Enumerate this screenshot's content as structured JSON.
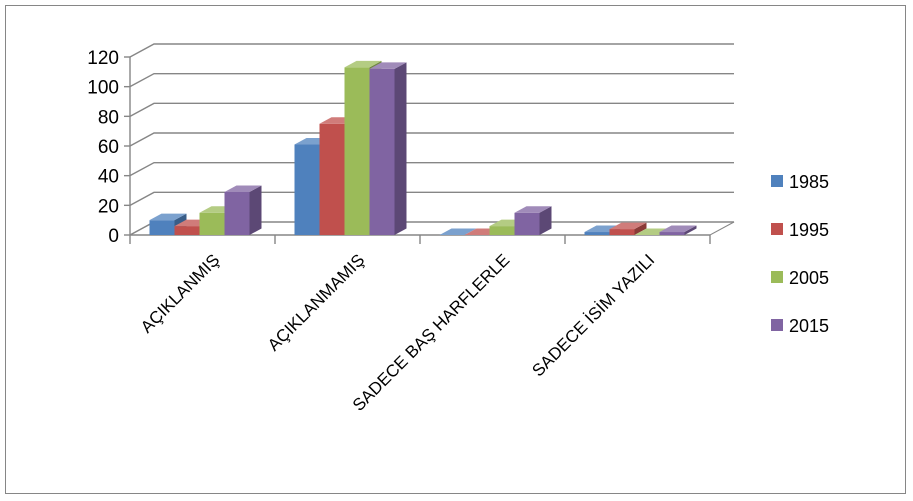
{
  "chart_data": {
    "type": "bar",
    "title": "",
    "xlabel": "",
    "ylabel": "",
    "categories": [
      "AÇIKLANMIŞ",
      "AÇIKLANMAMIŞ",
      "SADECE BAŞ HARFLERLE",
      "SADECE İSİM YAZILI"
    ],
    "series": [
      {
        "name": "1985",
        "color": "#4F81BD",
        "values": [
          10,
          61,
          0,
          2
        ]
      },
      {
        "name": "1995",
        "color": "#C0504D",
        "values": [
          6,
          75,
          0,
          4
        ]
      },
      {
        "name": "2005",
        "color": "#9BBB59",
        "values": [
          15,
          113,
          6,
          0
        ]
      },
      {
        "name": "2015",
        "color": "#8064A2",
        "values": [
          29,
          112,
          15,
          2
        ]
      }
    ],
    "yticks": [
      "0",
      "20",
      "40",
      "60",
      "80",
      "100",
      "120"
    ],
    "ylim": [
      0,
      120
    ],
    "grid": true,
    "legend_position": "right",
    "style": "3d-clustered-column"
  }
}
